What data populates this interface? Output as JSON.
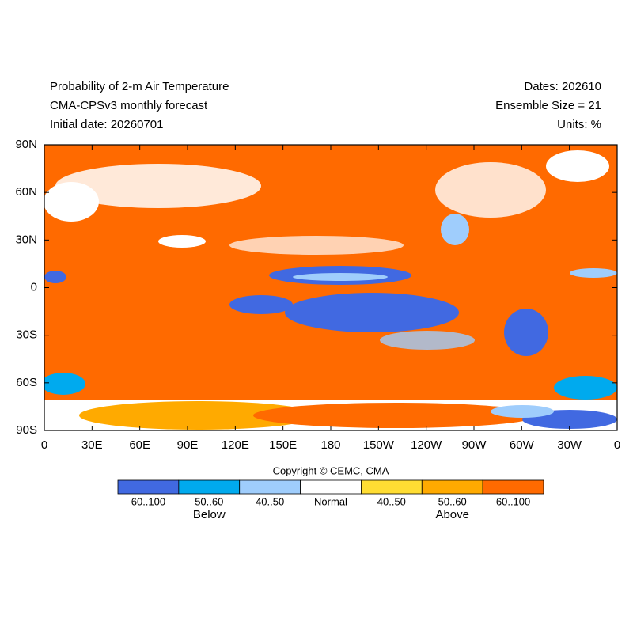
{
  "header": {
    "title": "Probability of 2-m Air Temperature",
    "model": "CMA-CPSv3 monthly forecast",
    "initial_date": "Initial date: 20260701",
    "dates": "Dates: 202610",
    "ensemble": "Ensemble Size = 21",
    "units": "Units: %"
  },
  "map": {
    "lat_labels": [
      "90N",
      "60N",
      "30N",
      "0",
      "30S",
      "60S",
      "90S"
    ],
    "lon_labels": [
      "0",
      "30E",
      "60E",
      "90E",
      "120E",
      "150E",
      "180",
      "150W",
      "120W",
      "90W",
      "60W",
      "30W",
      "0"
    ]
  },
  "copyright": "Copyright © CEMC, CMA",
  "legend": {
    "items": [
      {
        "label": "60..100",
        "color": "#4169e1"
      },
      {
        "label": "50..60",
        "color": "#00aaee"
      },
      {
        "label": "40..50",
        "color": "#9fcdfc"
      },
      {
        "label": "Normal",
        "color": "#ffffff"
      },
      {
        "label": "40..50",
        "color": "#ffdd33"
      },
      {
        "label": "50..60",
        "color": "#ffaa00"
      },
      {
        "label": "60..100",
        "color": "#ff6a00"
      }
    ],
    "below": "Below",
    "above": "Above"
  }
}
